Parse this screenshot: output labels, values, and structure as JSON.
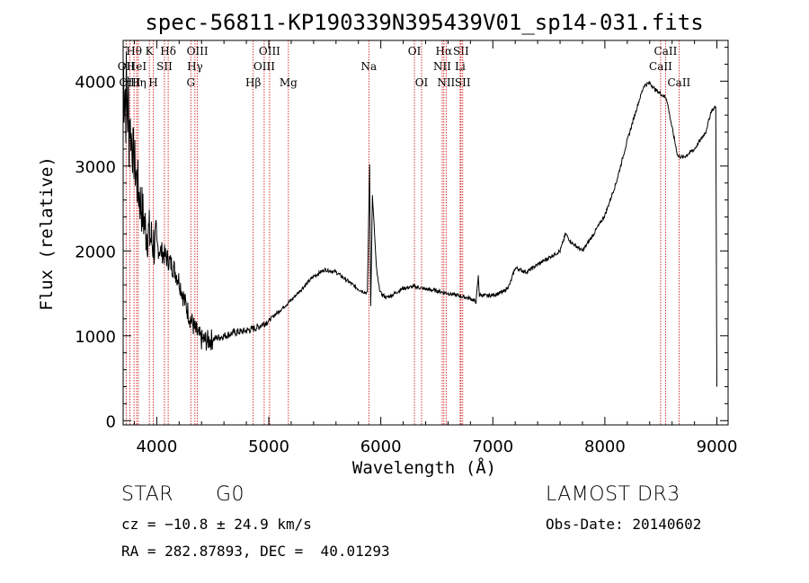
{
  "chart_data": {
    "type": "line",
    "title": "spec-56811-KP190339N395439V01_sp14-031.fits",
    "xlabel": "Wavelength (Å)",
    "ylabel": "Flux (relative)",
    "xlim": [
      3700,
      9100
    ],
    "ylim": [
      -50,
      4480
    ],
    "xticks": [
      4000,
      5000,
      6000,
      7000,
      8000,
      9000
    ],
    "yticks": [
      0,
      1000,
      2000,
      3000,
      4000
    ],
    "grid": false,
    "series": [
      {
        "name": "flux",
        "x": [
          3700,
          3720,
          3740,
          3760,
          3780,
          3800,
          3820,
          3850,
          3880,
          3900,
          3930,
          3960,
          4000,
          4050,
          4100,
          4150,
          4200,
          4250,
          4300,
          4350,
          4400,
          4450,
          4500,
          4600,
          4700,
          4800,
          4850,
          4900,
          5000,
          5100,
          5200,
          5300,
          5400,
          5500,
          5600,
          5700,
          5800,
          5880,
          5900,
          5910,
          5925,
          5940,
          5960,
          5980,
          6000,
          6050,
          6100,
          6200,
          6300,
          6400,
          6500,
          6600,
          6700,
          6800,
          6850,
          6870,
          6880,
          6900,
          6950,
          7000,
          7100,
          7150,
          7200,
          7300,
          7400,
          7500,
          7600,
          7650,
          7700,
          7800,
          7900,
          8000,
          8100,
          8200,
          8300,
          8350,
          8400,
          8450,
          8500,
          8550,
          8600,
          8650,
          8700,
          8750,
          8800,
          8850,
          8900,
          8950,
          8990
        ],
        "y": [
          4150,
          3900,
          3700,
          3500,
          3250,
          3050,
          2850,
          2600,
          2400,
          2250,
          2200,
          2100,
          2050,
          1980,
          1900,
          1800,
          1650,
          1400,
          1200,
          1050,
          950,
          940,
          960,
          1000,
          1040,
          1060,
          1080,
          1100,
          1180,
          1300,
          1420,
          1560,
          1700,
          1780,
          1750,
          1650,
          1550,
          1500,
          3000,
          1350,
          2650,
          2300,
          1800,
          1600,
          1500,
          1450,
          1480,
          1560,
          1580,
          1550,
          1530,
          1500,
          1470,
          1440,
          1400,
          1700,
          1480,
          1480,
          1470,
          1480,
          1520,
          1600,
          1800,
          1750,
          1840,
          1920,
          2000,
          2200,
          2100,
          2000,
          2200,
          2420,
          2800,
          3300,
          3750,
          3950,
          3980,
          3900,
          3850,
          3800,
          3450,
          3120,
          3100,
          3150,
          3200,
          3300,
          3400,
          3650,
          3700
        ]
      }
    ],
    "line_markers": [
      {
        "label": "OII",
        "x": 3727,
        "row": 2
      },
      {
        "label": "Hθ",
        "x": 3797,
        "row": 1
      },
      {
        "label": "OIII",
        "x": 3760,
        "row": 3
      },
      {
        "label": "HeI",
        "x": 3820,
        "row": 2
      },
      {
        "label": "Hη",
        "x": 3835,
        "row": 3
      },
      {
        "label": "K",
        "x": 3934,
        "row": 1
      },
      {
        "label": "SII",
        "x": 4069,
        "row": 2
      },
      {
        "label": "H",
        "x": 3969,
        "row": 3
      },
      {
        "label": "Hδ",
        "x": 4102,
        "row": 1
      },
      {
        "label": "OIII",
        "x": 4363,
        "row": 1
      },
      {
        "label": "Hγ",
        "x": 4341,
        "row": 2
      },
      {
        "label": "G",
        "x": 4304,
        "row": 3
      },
      {
        "label": "Hβ",
        "x": 4861,
        "row": 3
      },
      {
        "label": "OIII",
        "x": 5007,
        "row": 1
      },
      {
        "label": "OIII",
        "x": 4959,
        "row": 2
      },
      {
        "label": "Mg",
        "x": 5175,
        "row": 3
      },
      {
        "label": "Na",
        "x": 5893,
        "row": 2
      },
      {
        "label": "OI",
        "x": 6300,
        "row": 1
      },
      {
        "label": "OI",
        "x": 6364,
        "row": 3
      },
      {
        "label": "Hα",
        "x": 6563,
        "row": 1
      },
      {
        "label": "NII",
        "x": 6548,
        "row": 2
      },
      {
        "label": "NII",
        "x": 6583,
        "row": 3
      },
      {
        "label": "SII",
        "x": 6716,
        "row": 1
      },
      {
        "label": "Li",
        "x": 6708,
        "row": 2
      },
      {
        "label": "SII",
        "x": 6731,
        "row": 3
      },
      {
        "label": "CaII",
        "x": 8542,
        "row": 1
      },
      {
        "label": "CaII",
        "x": 8498,
        "row": 2
      },
      {
        "label": "CaII",
        "x": 8662,
        "row": 3
      }
    ]
  },
  "info": {
    "object_class": "STAR",
    "subclass": "G0",
    "survey": "LAMOST DR3",
    "redshift": "cz = −10.8 ± 24.9 km/s",
    "obs_date": "Obs-Date: 20140602",
    "coords": "RA = 282.87893, DEC =  40.01293"
  }
}
